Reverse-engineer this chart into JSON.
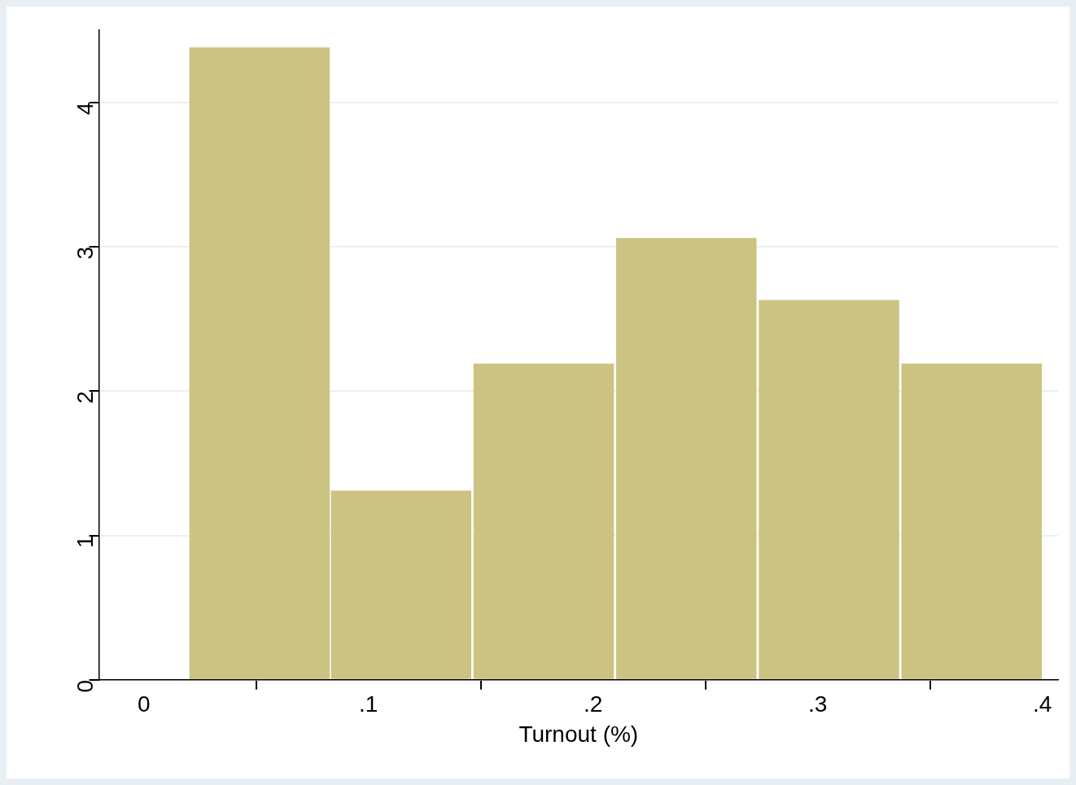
{
  "chart_data": {
    "type": "histogram",
    "xlabel": "Turnout (%)",
    "bins": [
      0.02,
      0.083,
      0.146,
      0.21,
      0.273,
      0.337,
      0.4
    ],
    "values": [
      4.38,
      1.31,
      2.19,
      3.06,
      2.63,
      2.19
    ],
    "color": "#cbc382",
    "xlim": [
      -0.02,
      0.407
    ],
    "xticks": [
      0,
      {
        "value": 0.1,
        "label": ".1"
      },
      {
        "value": 0.2,
        "label": ".2"
      },
      {
        "value": 0.3,
        "label": ".3"
      },
      {
        "value": 0.4,
        "label": ".4"
      }
    ],
    "ylim": [
      0,
      4.5
    ],
    "yticks": [
      0,
      1,
      2,
      3,
      4
    ],
    "grid": "y",
    "legend": false
  }
}
